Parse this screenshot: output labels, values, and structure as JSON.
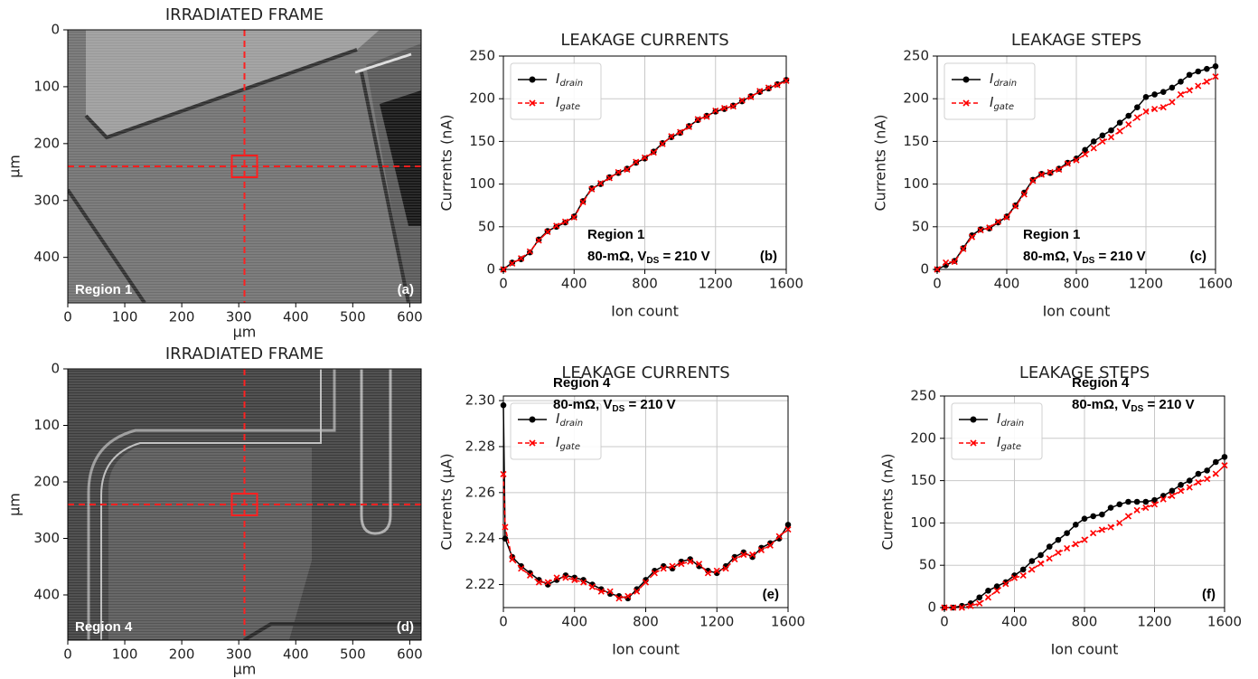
{
  "chart_data": [
    {
      "type": "image",
      "title": "IRRADIATED FRAME",
      "xlabel": "μm",
      "ylabel": "μm",
      "xlim": [
        0,
        620
      ],
      "ylim": [
        480,
        0
      ],
      "xticks": [
        0,
        100,
        200,
        300,
        400,
        500,
        600
      ],
      "yticks": [
        0,
        100,
        200,
        300,
        400
      ],
      "region_label": "Region 1",
      "panel_label": "(a)"
    },
    {
      "type": "line",
      "title": "LEAKAGE CURRENTS",
      "xlabel": "Ion count",
      "ylabel": "Currents (nA)",
      "xlim": [
        0,
        1600
      ],
      "ylim": [
        0,
        250
      ],
      "xticks": [
        0,
        400,
        800,
        1200,
        1600
      ],
      "yticks": [
        0,
        50,
        100,
        150,
        200,
        250
      ],
      "grid": true,
      "legend": "upper left",
      "x": [
        0,
        50,
        100,
        150,
        200,
        250,
        300,
        350,
        400,
        450,
        500,
        550,
        600,
        650,
        700,
        750,
        800,
        850,
        900,
        950,
        1000,
        1050,
        1100,
        1150,
        1200,
        1250,
        1300,
        1350,
        1400,
        1450,
        1500,
        1550,
        1600
      ],
      "series": [
        {
          "name": "I",
          "name_subscript": "drain",
          "color": "#000000",
          "marker": "o",
          "line_style": "solid",
          "values": [
            0,
            8,
            12,
            20,
            35,
            45,
            50,
            55,
            62,
            80,
            95,
            100,
            108,
            113,
            118,
            125,
            130,
            138,
            148,
            155,
            160,
            168,
            175,
            180,
            185,
            188,
            192,
            197,
            203,
            208,
            212,
            217,
            222
          ]
        },
        {
          "name": "I",
          "name_subscript": "gate",
          "color": "#ff0000",
          "marker": "x",
          "line_style": "dashed",
          "values": [
            0,
            7,
            13,
            21,
            34,
            44,
            51,
            56,
            61,
            79,
            94,
            101,
            107,
            114,
            117,
            126,
            131,
            137,
            147,
            156,
            161,
            167,
            176,
            179,
            186,
            189,
            191,
            198,
            202,
            209,
            213,
            216,
            221
          ]
        }
      ],
      "annotation": {
        "title": "Region 1",
        "prefix": "80-mΩ, V",
        "subscript": "DS",
        "suffix": " = 210 V"
      },
      "panel_label": "(b)"
    },
    {
      "type": "line",
      "title": "LEAKAGE STEPS",
      "xlabel": "Ion count",
      "ylabel": "Currents (nA)",
      "xlim": [
        0,
        1600
      ],
      "ylim": [
        0,
        250
      ],
      "xticks": [
        0,
        400,
        800,
        1200,
        1600
      ],
      "yticks": [
        0,
        50,
        100,
        150,
        200,
        250
      ],
      "grid": true,
      "legend": "upper left",
      "x": [
        0,
        50,
        100,
        150,
        200,
        250,
        300,
        350,
        400,
        450,
        500,
        550,
        600,
        650,
        700,
        750,
        800,
        850,
        900,
        950,
        1000,
        1050,
        1100,
        1150,
        1200,
        1250,
        1300,
        1350,
        1400,
        1450,
        1500,
        1550,
        1600
      ],
      "series": [
        {
          "name": "I",
          "name_subscript": "drain",
          "color": "#000000",
          "marker": "o",
          "line_style": "solid",
          "values": [
            0,
            5,
            10,
            25,
            40,
            47,
            48,
            55,
            62,
            75,
            90,
            105,
            112,
            113,
            118,
            125,
            130,
            140,
            150,
            157,
            163,
            172,
            180,
            190,
            202,
            205,
            208,
            213,
            220,
            228,
            232,
            235,
            238
          ]
        },
        {
          "name": "I",
          "name_subscript": "gate",
          "color": "#ff0000",
          "marker": "x",
          "line_style": "dashed",
          "values": [
            0,
            8,
            9,
            24,
            38,
            46,
            49,
            56,
            61,
            74,
            88,
            104,
            111,
            114,
            117,
            124,
            128,
            135,
            142,
            150,
            155,
            162,
            170,
            178,
            185,
            188,
            190,
            196,
            205,
            210,
            215,
            220,
            226
          ]
        }
      ],
      "annotation": {
        "title": "Region 1",
        "prefix": "80-mΩ, V",
        "subscript": "DS",
        "suffix": " = 210 V"
      },
      "panel_label": "(c)"
    },
    {
      "type": "image",
      "title": "IRRADIATED FRAME",
      "xlabel": "μm",
      "ylabel": "μm",
      "xlim": [
        0,
        620
      ],
      "ylim": [
        480,
        0
      ],
      "xticks": [
        0,
        100,
        200,
        300,
        400,
        500,
        600
      ],
      "yticks": [
        0,
        100,
        200,
        300,
        400
      ],
      "region_label": "Region 4",
      "panel_label": "(d)"
    },
    {
      "type": "line",
      "title": "LEAKAGE CURRENTS",
      "xlabel": "Ion count",
      "ylabel": "Currents (μA)",
      "xlim": [
        0,
        1600
      ],
      "ylim": [
        2.21,
        2.302
      ],
      "xticks": [
        0,
        400,
        800,
        1200,
        1600
      ],
      "yticks": [
        2.22,
        2.24,
        2.26,
        2.28,
        {
          "value": 2.3,
          "label": "2.30"
        }
      ],
      "grid": true,
      "legend": "upper left",
      "x": [
        0,
        10,
        50,
        100,
        150,
        200,
        250,
        300,
        350,
        400,
        450,
        500,
        550,
        600,
        650,
        700,
        750,
        800,
        850,
        900,
        950,
        1000,
        1050,
        1100,
        1150,
        1200,
        1250,
        1300,
        1350,
        1400,
        1450,
        1500,
        1550,
        1600
      ],
      "series": [
        {
          "name": "I",
          "name_subscript": "drain",
          "color": "#000000",
          "marker": "o",
          "line_style": "solid",
          "values": [
            2.298,
            2.24,
            2.232,
            2.228,
            2.225,
            2.222,
            2.22,
            2.222,
            2.224,
            2.223,
            2.222,
            2.22,
            2.218,
            2.216,
            2.215,
            2.214,
            2.218,
            2.222,
            2.226,
            2.228,
            2.227,
            2.23,
            2.231,
            2.228,
            2.226,
            2.225,
            2.228,
            2.232,
            2.234,
            2.232,
            2.236,
            2.238,
            2.24,
            2.246
          ]
        },
        {
          "name": "I",
          "name_subscript": "gate",
          "color": "#ff0000",
          "marker": "x",
          "line_style": "dashed",
          "values": [
            2.268,
            2.245,
            2.231,
            2.227,
            2.224,
            2.221,
            2.221,
            2.223,
            2.223,
            2.222,
            2.221,
            2.219,
            2.217,
            2.217,
            2.214,
            2.215,
            2.217,
            2.221,
            2.225,
            2.227,
            2.228,
            2.229,
            2.23,
            2.229,
            2.225,
            2.226,
            2.227,
            2.231,
            2.233,
            2.233,
            2.235,
            2.237,
            2.241,
            2.244
          ]
        }
      ],
      "annotation": {
        "title": "Region 4",
        "prefix": "80-mΩ, V",
        "subscript": "DS",
        "suffix": " = 210 V"
      },
      "panel_label": "(e)"
    },
    {
      "type": "line",
      "title": "LEAKAGE STEPS",
      "xlabel": "Ion count",
      "ylabel": "Currents (nA)",
      "xlim": [
        0,
        1600
      ],
      "ylim": [
        0,
        250
      ],
      "xticks": [
        0,
        400,
        800,
        1200,
        1600
      ],
      "yticks": [
        0,
        50,
        100,
        150,
        200,
        250
      ],
      "grid": true,
      "legend": "upper left",
      "x": [
        0,
        50,
        100,
        150,
        200,
        250,
        300,
        350,
        400,
        450,
        500,
        550,
        600,
        650,
        700,
        750,
        800,
        850,
        900,
        950,
        1000,
        1050,
        1100,
        1150,
        1200,
        1250,
        1300,
        1350,
        1400,
        1450,
        1500,
        1550,
        1600
      ],
      "series": [
        {
          "name": "I",
          "name_subscript": "drain",
          "color": "#000000",
          "marker": "o",
          "line_style": "solid",
          "values": [
            0,
            0,
            2,
            5,
            12,
            20,
            25,
            30,
            38,
            45,
            55,
            62,
            72,
            80,
            88,
            98,
            105,
            108,
            110,
            118,
            122,
            125,
            125,
            125,
            127,
            132,
            138,
            145,
            150,
            158,
            162,
            172,
            178
          ]
        },
        {
          "name": "I",
          "name_subscript": "gate",
          "color": "#ff0000",
          "marker": "x",
          "line_style": "dashed",
          "values": [
            0,
            0,
            0,
            2,
            5,
            12,
            20,
            28,
            35,
            38,
            45,
            52,
            58,
            65,
            70,
            75,
            80,
            88,
            92,
            95,
            100,
            108,
            115,
            118,
            122,
            128,
            132,
            138,
            142,
            148,
            152,
            158,
            168
          ]
        }
      ],
      "annotation": {
        "title": "Region 4",
        "prefix": "80-mΩ, V",
        "subscript": "DS",
        "suffix": " = 210 V"
      },
      "panel_label": "(f)"
    }
  ]
}
